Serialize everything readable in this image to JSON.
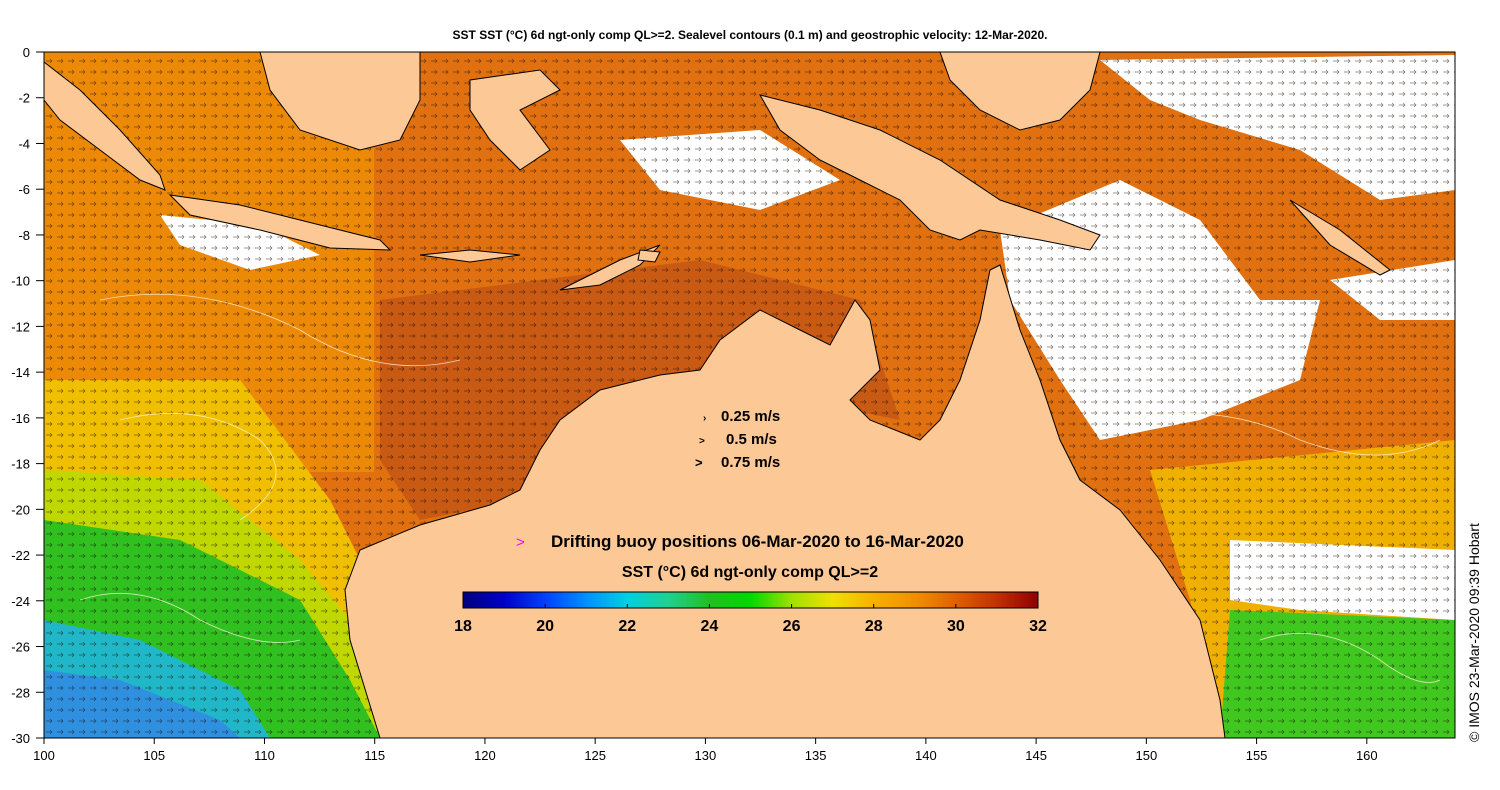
{
  "title": "SST SST (°C) 6d ngt-only comp QL>=2. Sealevel contours (0.1 m) and geostrophic velocity: 12-Mar-2020.",
  "credit": "© IMOS 23-Mar-2020 09:39 Hobart",
  "axes": {
    "lon_ticks": [
      "100",
      "105",
      "110",
      "115",
      "120",
      "125",
      "130",
      "135",
      "140",
      "145",
      "150",
      "155",
      "160"
    ],
    "lat_ticks": [
      "0",
      "-2",
      "-4",
      "-6",
      "-8",
      "-10",
      "-12",
      "-14",
      "-16",
      "-18",
      "-20",
      "-22",
      "-24",
      "-26",
      "-28",
      "-30"
    ],
    "lon_range": [
      100,
      164
    ],
    "lat_range": [
      -30,
      0
    ]
  },
  "velocity_legend": {
    "items": [
      {
        "symbol": "›",
        "label": "0.25 m/s"
      },
      {
        "symbol": ">",
        "label": "0.5 m/s"
      },
      {
        "symbol": ">",
        "label": "0.75 m/s"
      }
    ]
  },
  "buoy_legend": {
    "symbol": ">",
    "label": "Drifting buoy positions 06-Mar-2020 to 16-Mar-2020",
    "color": "#ff00ff"
  },
  "colorbar": {
    "title": "SST (°C) 6d ngt-only comp QL>=2",
    "ticks": [
      "18",
      "20",
      "22",
      "24",
      "26",
      "28",
      "30",
      "32"
    ],
    "range": [
      18,
      32
    ],
    "colors": [
      "#00007f",
      "#0000c8",
      "#0040ff",
      "#0090ff",
      "#00d0e0",
      "#20d090",
      "#20c020",
      "#00d800",
      "#a0e000",
      "#f0e000",
      "#f8b000",
      "#f09000",
      "#e06000",
      "#c03000",
      "#900000"
    ]
  },
  "colors": {
    "land": "#fcc896",
    "sea_warm": "#e07010",
    "sea_hot": "#c04810",
    "sea_orange": "#f09000",
    "sea_yellow": "#e8e000",
    "sea_green": "#30c020",
    "sea_cyan": "#20b0d0",
    "sea_blue": "#3080e0",
    "cloud": "#ffffff"
  }
}
